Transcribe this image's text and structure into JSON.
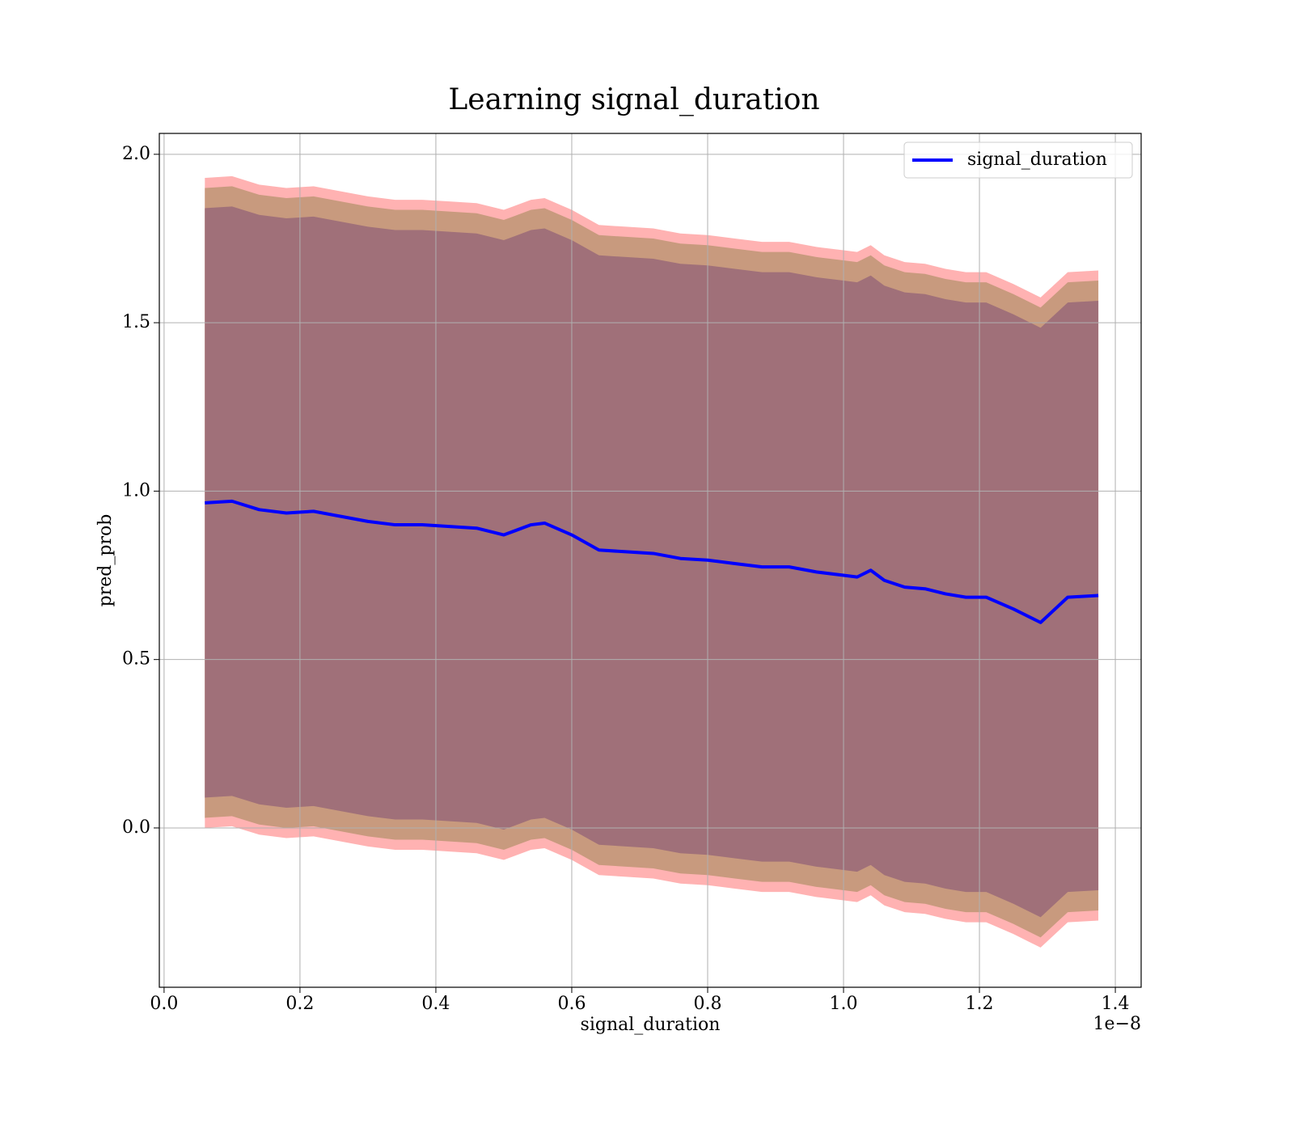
{
  "chart_data": {
    "type": "line",
    "title": "Learning signal_duration",
    "xlabel": "signal_duration",
    "ylabel": "pred_prob",
    "x_offset_label": "1e−8",
    "xlim": [
      -0.007,
      1.438
    ],
    "ylim": [
      -0.473,
      2.062
    ],
    "xticks": [
      {
        "value": 0,
        "label": "0.0"
      },
      0.2,
      0.4,
      0.6,
      0.8,
      {
        "value": 1,
        "label": "1.0"
      },
      1.2,
      1.4
    ],
    "yticks": [
      {
        "value": 0,
        "label": "0.0"
      },
      0.5,
      {
        "value": 1,
        "label": "1.0"
      },
      1.5,
      {
        "value": 2,
        "label": "2.0"
      }
    ],
    "grid": true,
    "legend": "upper right",
    "x": [
      0.06,
      0.1,
      0.14,
      0.18,
      0.22,
      0.26,
      0.3,
      0.34,
      0.38,
      0.42,
      0.46,
      0.5,
      0.54,
      0.56,
      0.6,
      0.64,
      0.68,
      0.72,
      0.76,
      0.8,
      0.84,
      0.88,
      0.92,
      0.96,
      1.0,
      1.02,
      1.04,
      1.06,
      1.09,
      1.12,
      1.15,
      1.18,
      1.21,
      1.25,
      1.29,
      1.33,
      1.375
    ],
    "bands": [
      {
        "color": "#ffb2b2",
        "upper": [
          1.93,
          1.935,
          1.91,
          1.9,
          1.905,
          1.89,
          1.875,
          1.865,
          1.865,
          1.86,
          1.855,
          1.835,
          1.865,
          1.87,
          1.835,
          1.79,
          1.785,
          1.78,
          1.765,
          1.76,
          1.75,
          1.74,
          1.74,
          1.725,
          1.715,
          1.71,
          1.73,
          1.7,
          1.68,
          1.675,
          1.66,
          1.65,
          1.65,
          1.615,
          1.575,
          1.65,
          1.655
        ],
        "lower": [
          0,
          0.005,
          -0.02,
          -0.03,
          -0.025,
          -0.04,
          -0.055,
          -0.065,
          -0.065,
          -0.07,
          -0.075,
          -0.095,
          -0.065,
          -0.06,
          -0.095,
          -0.14,
          -0.145,
          -0.15,
          -0.165,
          -0.17,
          -0.18,
          -0.19,
          -0.19,
          -0.205,
          -0.215,
          -0.22,
          -0.2,
          -0.23,
          -0.25,
          -0.255,
          -0.27,
          -0.28,
          -0.28,
          -0.315,
          -0.355,
          -0.28,
          -0.275
        ]
      },
      {
        "color": "#c89a7e",
        "upper": [
          1.9,
          1.905,
          1.88,
          1.87,
          1.875,
          1.86,
          1.845,
          1.835,
          1.835,
          1.83,
          1.825,
          1.805,
          1.835,
          1.84,
          1.805,
          1.76,
          1.755,
          1.75,
          1.735,
          1.73,
          1.72,
          1.71,
          1.71,
          1.695,
          1.685,
          1.68,
          1.7,
          1.67,
          1.65,
          1.645,
          1.63,
          1.62,
          1.62,
          1.585,
          1.545,
          1.62,
          1.625
        ],
        "lower": [
          0.03,
          0.035,
          0.01,
          0,
          0.005,
          -0.01,
          -0.025,
          -0.035,
          -0.035,
          -0.04,
          -0.045,
          -0.065,
          -0.035,
          -0.03,
          -0.065,
          -0.11,
          -0.115,
          -0.12,
          -0.135,
          -0.14,
          -0.15,
          -0.16,
          -0.16,
          -0.175,
          -0.185,
          -0.19,
          -0.17,
          -0.2,
          -0.22,
          -0.225,
          -0.24,
          -0.25,
          -0.25,
          -0.285,
          -0.325,
          -0.25,
          -0.245
        ]
      },
      {
        "color": "#a07079",
        "upper": [
          1.84,
          1.845,
          1.82,
          1.81,
          1.815,
          1.8,
          1.785,
          1.775,
          1.775,
          1.77,
          1.765,
          1.745,
          1.775,
          1.78,
          1.745,
          1.7,
          1.695,
          1.69,
          1.675,
          1.67,
          1.66,
          1.65,
          1.65,
          1.635,
          1.625,
          1.62,
          1.64,
          1.61,
          1.59,
          1.585,
          1.57,
          1.56,
          1.56,
          1.525,
          1.485,
          1.56,
          1.565
        ],
        "lower": [
          0.09,
          0.095,
          0.07,
          0.06,
          0.065,
          0.05,
          0.035,
          0.025,
          0.025,
          0.02,
          0.015,
          -0.005,
          0.025,
          0.03,
          -0.005,
          -0.05,
          -0.055,
          -0.06,
          -0.075,
          -0.08,
          -0.09,
          -0.1,
          -0.1,
          -0.115,
          -0.125,
          -0.13,
          -0.11,
          -0.14,
          -0.16,
          -0.165,
          -0.18,
          -0.19,
          -0.19,
          -0.225,
          -0.265,
          -0.19,
          -0.185
        ]
      }
    ],
    "series": [
      {
        "name": "signal_duration",
        "color": "#0000ff",
        "values": [
          0.965,
          0.97,
          0.945,
          0.935,
          0.94,
          0.925,
          0.91,
          0.9,
          0.9,
          0.895,
          0.89,
          0.87,
          0.9,
          0.905,
          0.87,
          0.825,
          0.82,
          0.815,
          0.8,
          0.795,
          0.785,
          0.775,
          0.775,
          0.76,
          0.75,
          0.745,
          0.765,
          0.735,
          0.715,
          0.71,
          0.695,
          0.685,
          0.685,
          0.65,
          0.61,
          0.685,
          0.69
        ]
      }
    ]
  }
}
